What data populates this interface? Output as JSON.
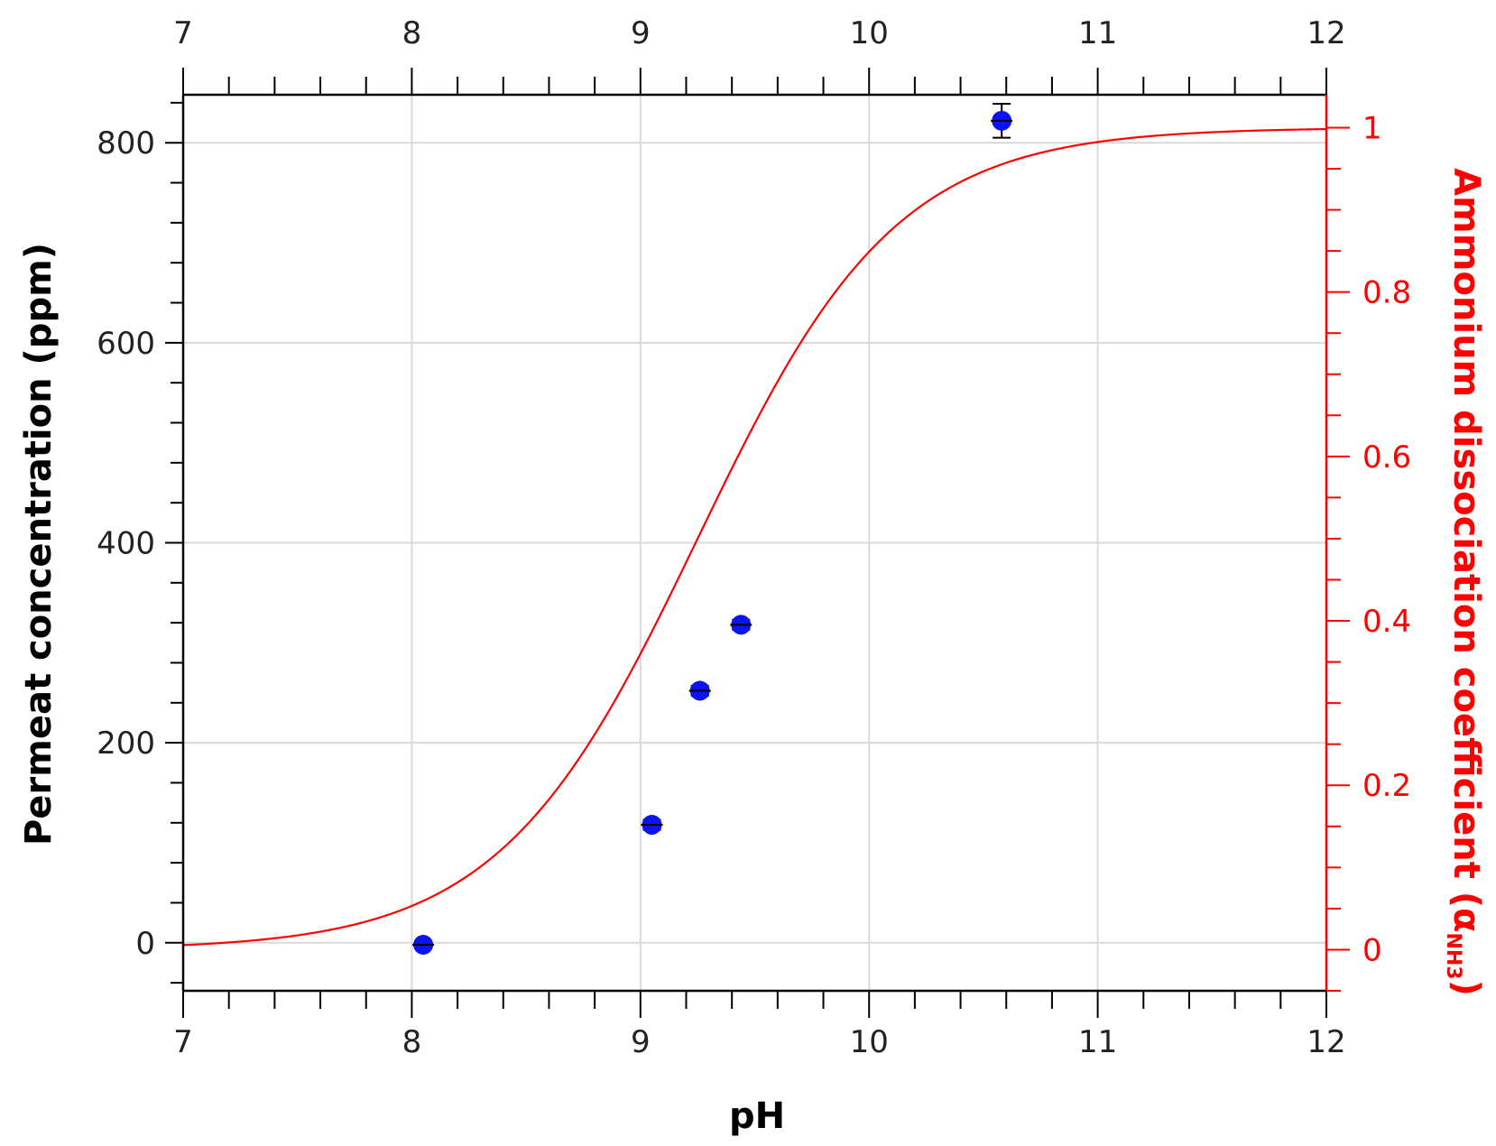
{
  "chart_data": {
    "type": "scatter",
    "title": "",
    "xlabel": "pH",
    "ylabel": "Permeat concentration (ppm)",
    "y2label": {
      "text": "Ammonium dissociation coefficient (α",
      "sub": "NH3",
      "close": ")"
    },
    "xlim": [
      7,
      12
    ],
    "ylim": [
      -48,
      848
    ],
    "y2lim": [
      -0.05,
      1.04
    ],
    "x_ticks": [
      7,
      8,
      9,
      10,
      11,
      12
    ],
    "x_tick_labels": [
      "7",
      "8",
      "9",
      "10",
      "11",
      "12"
    ],
    "y_ticks": [
      0,
      200,
      400,
      600,
      800
    ],
    "y_tick_labels": [
      "0",
      "200",
      "400",
      "600",
      "800"
    ],
    "y2_ticks": [
      0,
      0.2,
      0.4,
      0.6,
      0.8,
      1
    ],
    "y2_tick_labels": [
      "0",
      "0.2",
      "0.4",
      "0.6",
      "0.8",
      "1"
    ],
    "grid": true,
    "series": [
      {
        "type": "scatter",
        "axis": "left",
        "color": "#0a14f0",
        "points": [
          {
            "x": 8.05,
            "y": -2,
            "err": 0
          },
          {
            "x": 9.05,
            "y": 118,
            "err": 5
          },
          {
            "x": 9.26,
            "y": 252,
            "err": 5
          },
          {
            "x": 9.44,
            "y": 318,
            "err": 5
          },
          {
            "x": 10.58,
            "y": 822,
            "err": 17
          }
        ]
      },
      {
        "type": "line",
        "axis": "right",
        "color": "#ff0000",
        "function": "1/(1+10^(pKa-pH))",
        "pKa": 9.25
      }
    ],
    "colors": {
      "left_axis": "#000000",
      "right_axis": "#ff0000",
      "grid": "#d9d9d9"
    }
  }
}
